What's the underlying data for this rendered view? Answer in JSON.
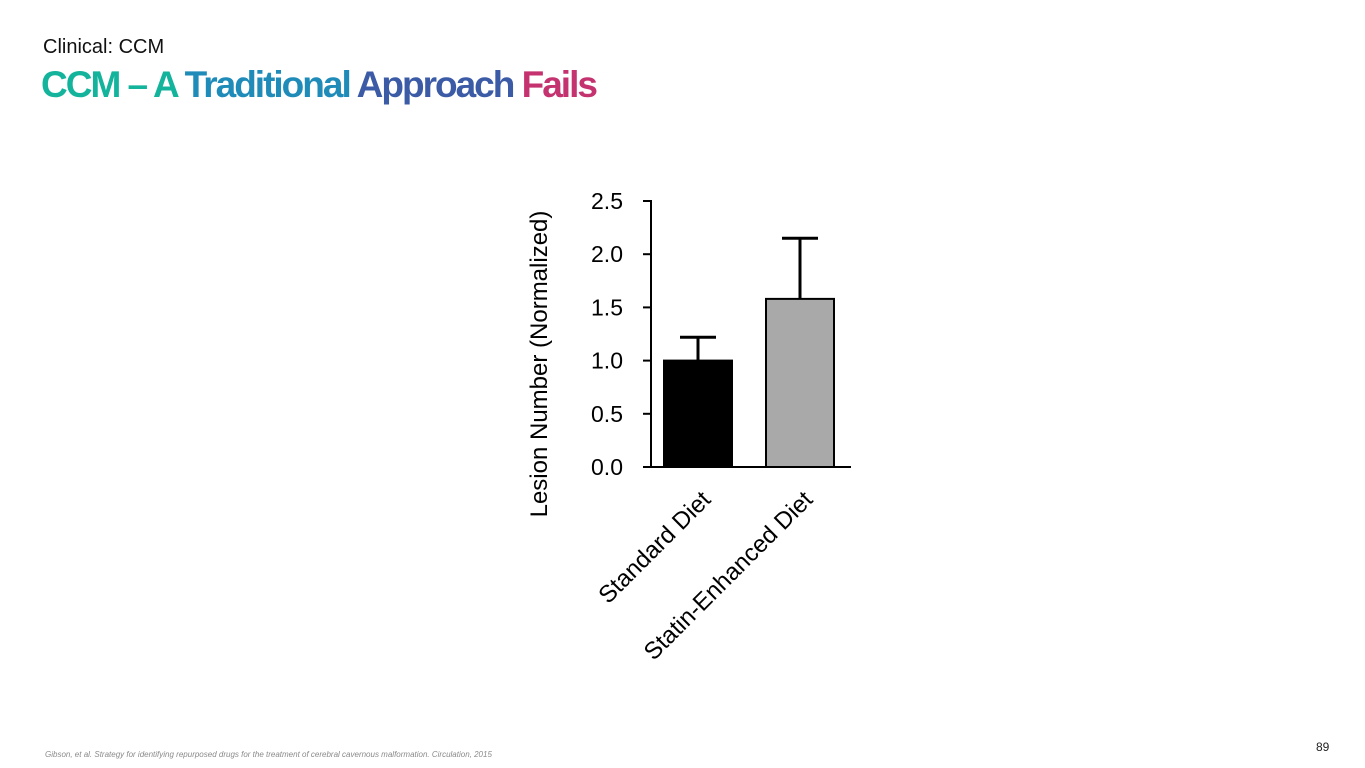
{
  "header": {
    "section_label": "Clinical: CCM",
    "title_parts": [
      {
        "text": "CCM – A ",
        "color": "#14b39c"
      },
      {
        "text": "Traditional ",
        "color": "#1f8bb8"
      },
      {
        "text": "Approach ",
        "color": "#3c5ba6"
      },
      {
        "text": "Fails",
        "color": "#c4336f"
      }
    ]
  },
  "chart_data": {
    "type": "bar",
    "title": "",
    "ylabel": "Lesion Number (Normalized)",
    "xlabel": "",
    "categories": [
      "Standard Diet",
      "Statin-Enhanced Diet"
    ],
    "values": [
      1.0,
      1.58
    ],
    "error_upper": [
      1.22,
      2.15
    ],
    "bar_colors": [
      "#000000",
      "#a9a9a9"
    ],
    "ylim": [
      0,
      2.5
    ],
    "yticks": [
      "0.0",
      "0.5",
      "1.0",
      "1.5",
      "2.0",
      "2.5"
    ],
    "grid": false,
    "legend": "none"
  },
  "footer": {
    "citation": "Gibson, et al. Strategy for identifying repurposed drugs for the treatment of cerebral cavernous malformation. Circulation, 2015",
    "page_number": "89"
  }
}
